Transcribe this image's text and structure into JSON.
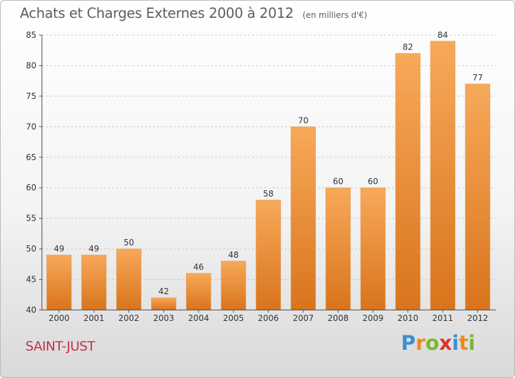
{
  "header": {
    "title": "Achats et Charges Externes 2000 à 2012",
    "unit": "(en milliers d'€)"
  },
  "footer": {
    "commune": "SAINT-JUST",
    "brand_letters": [
      "P",
      "r",
      "o",
      "x",
      "i",
      "t",
      "i"
    ]
  },
  "colors": {
    "bar_top": "#f7a95a",
    "bar_bottom": "#d9741c",
    "axis_text": "#333333",
    "grid": "#cccccc",
    "commune": "#c2304c",
    "brand": [
      "#3b8fd6",
      "#f08a1c",
      "#7ab82e",
      "#e0312c",
      "#3b8fd6",
      "#f08a1c",
      "#7ab82e"
    ]
  },
  "chart_data": {
    "type": "bar",
    "title": "Achats et Charges Externes 2000 à 2012",
    "subtitle": "(en milliers d'€)",
    "categories": [
      "2000",
      "2001",
      "2002",
      "2003",
      "2004",
      "2005",
      "2006",
      "2007",
      "2008",
      "2009",
      "2010",
      "2011",
      "2012"
    ],
    "values": [
      49,
      49,
      50,
      42,
      46,
      48,
      58,
      70,
      60,
      60,
      82,
      84,
      77
    ],
    "ylim": [
      40,
      85
    ],
    "yticks": [
      40,
      45,
      50,
      55,
      60,
      65,
      70,
      75,
      80,
      85
    ],
    "grid": "horizontal-dashed",
    "data_labels": true
  }
}
